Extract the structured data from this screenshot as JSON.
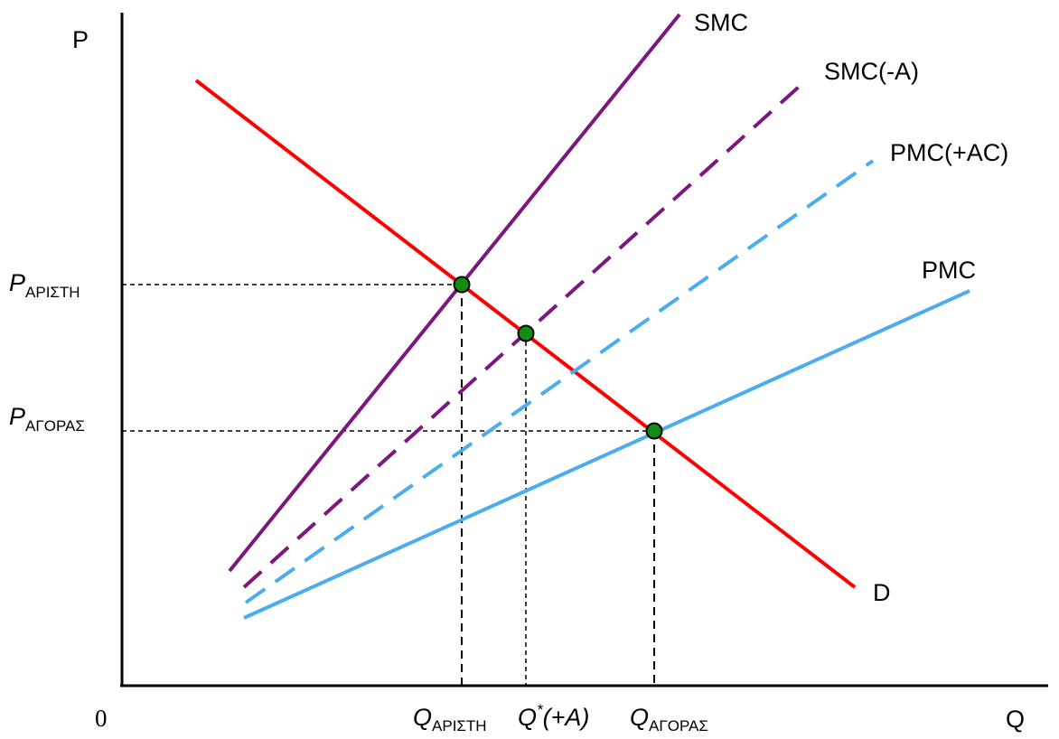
{
  "chart_data": {
    "type": "line",
    "axes": {
      "y_label": "P",
      "x_label": "Q",
      "origin_label": "0"
    },
    "series": [
      {
        "name": "D",
        "color": "#ff0000",
        "dashed": false,
        "stroke_width": 4,
        "points": [
          [
            217,
            89
          ],
          [
            946,
            650
          ]
        ]
      },
      {
        "name": "SMC",
        "color": "#7b177f",
        "dashed": false,
        "stroke_width": 4,
        "points": [
          [
            254,
            632
          ],
          [
            752,
            16
          ]
        ]
      },
      {
        "name": "SMC(-A)",
        "color": "#7b177f",
        "dashed": true,
        "stroke_width": 4,
        "points": [
          [
            270,
            650
          ],
          [
            893,
            88
          ]
        ]
      },
      {
        "name": "PMC(+AC)",
        "color": "#4badf0",
        "dashed": true,
        "stroke_width": 4,
        "points": [
          [
            272,
            667
          ],
          [
            966,
            178
          ]
        ]
      },
      {
        "name": "PMC",
        "color": "#4badf0",
        "dashed": false,
        "stroke_width": 4,
        "points": [
          [
            270,
            684
          ],
          [
            1073,
            322
          ]
        ]
      }
    ],
    "equilibria": [
      {
        "name": "optimal",
        "x": 511,
        "y": 315,
        "p_label": {
          "main": "P",
          "sub": "ΑΡΙΣΤΗ"
        },
        "q_label": {
          "main": "Q",
          "sub": "ΑΡΙΣΤΗ"
        }
      },
      {
        "name": "with-abatement",
        "x": 582,
        "y": 369,
        "q_label": {
          "main": "Q",
          "sup": "*",
          "rest": "(+A)"
        }
      },
      {
        "name": "market",
        "x": 724,
        "y": 477,
        "p_label": {
          "main": "P",
          "sub": "ΑΓΟΡΑΣ"
        },
        "q_label": {
          "main": "Q",
          "sub": "ΑΓΟΡΑΣ"
        }
      }
    ],
    "point_color": "#128c12",
    "series_labels": [
      "SMC",
      "SMC(-A)",
      "PMC(+AC)",
      "PMC",
      "D"
    ]
  }
}
